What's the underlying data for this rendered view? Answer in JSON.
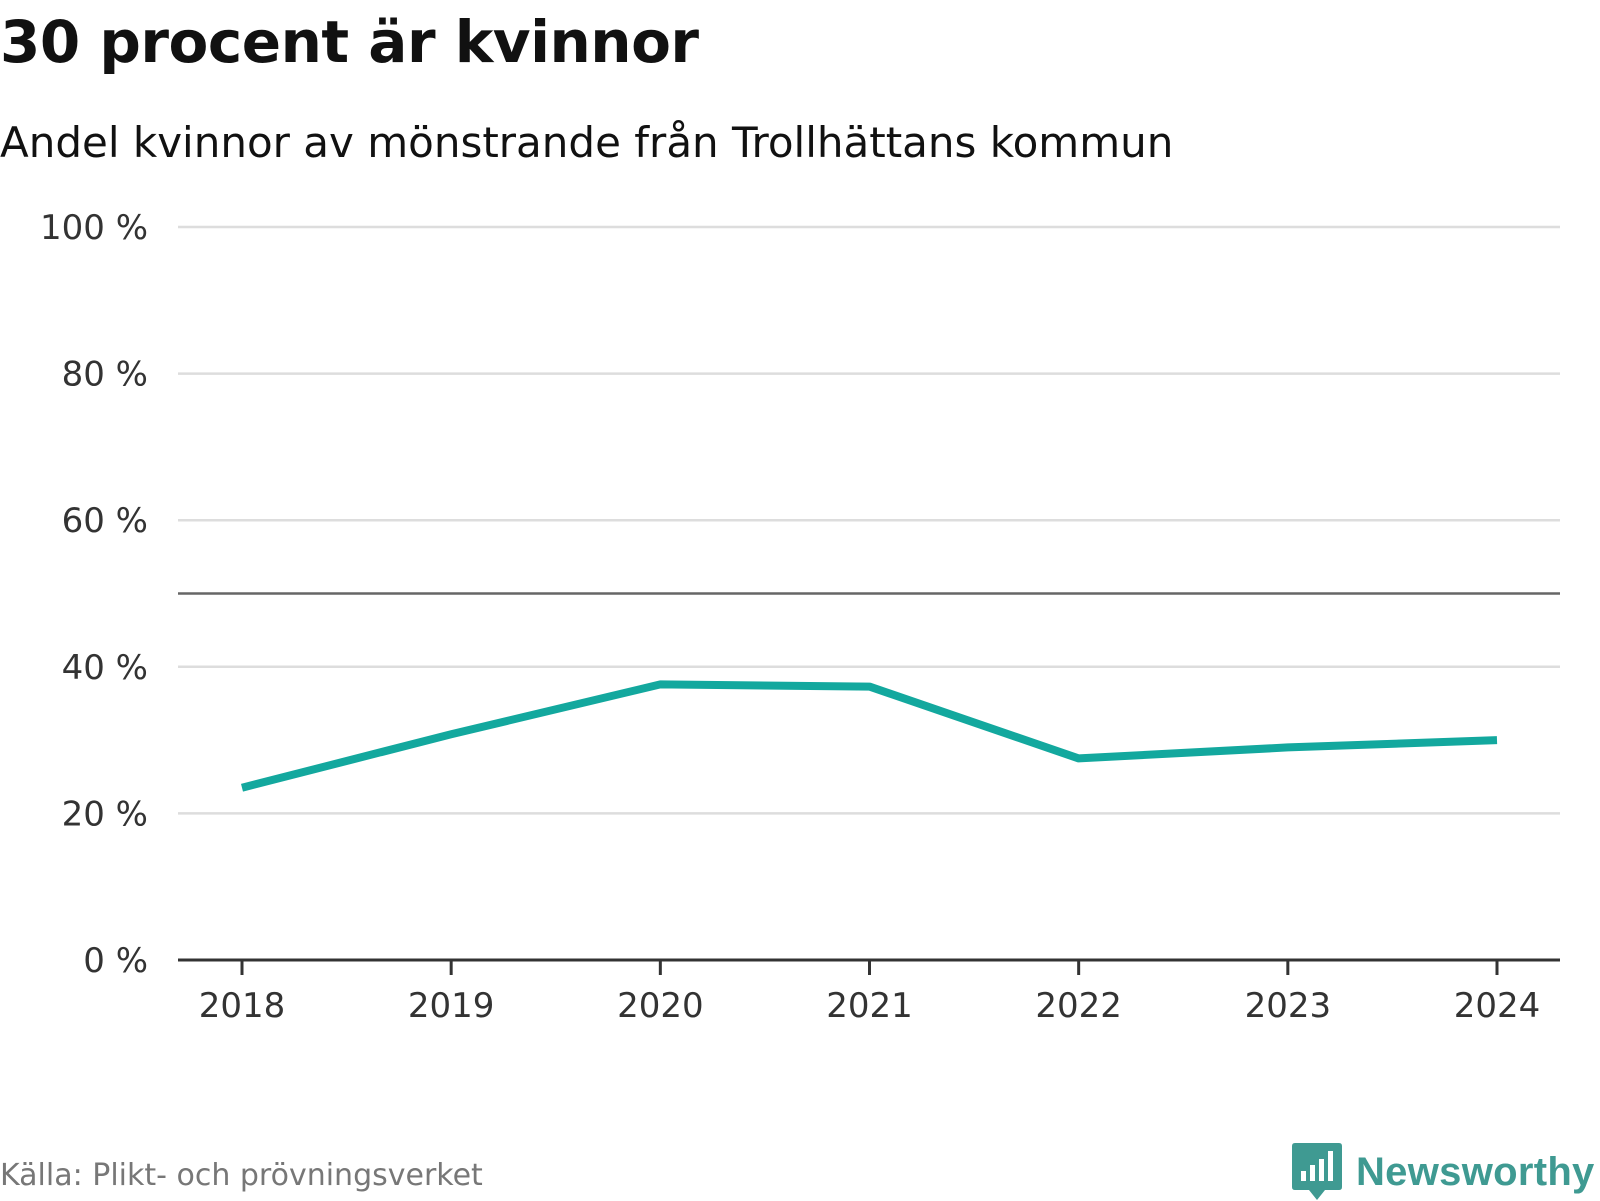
{
  "header": {
    "title": "30 procent är kvinnor",
    "subtitle": "Andel kvinnor av mönstrande från Trollhättans kommun"
  },
  "footer": {
    "source": "Källa: Plikt- och prövningsverket",
    "brand": "Newsworthy"
  },
  "colors": {
    "line": "#13a89e",
    "grid": "#dddddd",
    "reference": "#666666",
    "axis": "#333333",
    "brand": "#3f9a92"
  },
  "icons": {
    "brand": "bar-chart-logo-icon"
  },
  "chart_data": {
    "type": "line",
    "title": "30 procent är kvinnor",
    "subtitle": "Andel kvinnor av mönstrande från Trollhättans kommun",
    "xlabel": "",
    "ylabel": "",
    "categories": [
      "2018",
      "2019",
      "2020",
      "2021",
      "2022",
      "2023",
      "2024"
    ],
    "series": [
      {
        "name": "Andel kvinnor",
        "values": [
          23.5,
          30.8,
          37.6,
          37.3,
          27.5,
          29.0,
          30.0
        ]
      }
    ],
    "ylim": [
      0,
      100
    ],
    "yticks": [
      0,
      20,
      40,
      60,
      80,
      100
    ],
    "ytick_labels": [
      "0 %",
      "20 %",
      "40 %",
      "60 %",
      "80 %",
      "100 %"
    ],
    "reference_line": 50,
    "grid": true,
    "legend": "none"
  }
}
